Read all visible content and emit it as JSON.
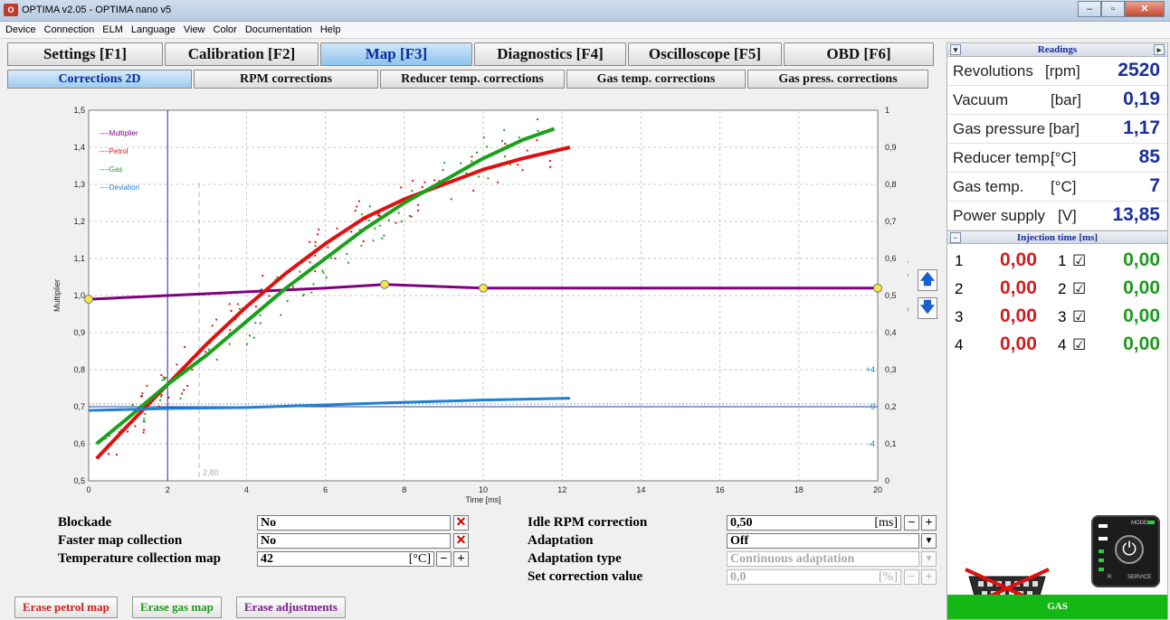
{
  "window": {
    "title": "OPTIMA v2.05  -  OPTIMA nano v5",
    "icon_text": "O"
  },
  "menu": [
    "Device",
    "Connection",
    "ELM",
    "Language",
    "View",
    "Color",
    "Documentation",
    "Help"
  ],
  "main_tabs": [
    {
      "label": "Settings [F1]",
      "active": false
    },
    {
      "label": "Calibration [F2]",
      "active": false
    },
    {
      "label": "Map [F3]",
      "active": true
    },
    {
      "label": "Diagnostics [F4]",
      "active": false
    },
    {
      "label": "Oscilloscope [F5]",
      "active": false
    },
    {
      "label": "OBD [F6]",
      "active": false
    }
  ],
  "sub_tabs": [
    {
      "label": "Corrections 2D",
      "active": true
    },
    {
      "label": "RPM corrections",
      "active": false
    },
    {
      "label": "Reducer temp. corrections",
      "active": false
    },
    {
      "label": "Gas temp. corrections",
      "active": false
    },
    {
      "label": "Gas press. corrections",
      "active": false
    }
  ],
  "chart_data": {
    "type": "line",
    "xlabel": "Time [ms]",
    "ylabel": "Multiplier",
    "ylabel_right": "Pressure [bar]",
    "xlim": [
      0,
      20
    ],
    "ylim": [
      0.5,
      1.5
    ],
    "ylim_right": [
      0,
      1
    ],
    "x_ticks": [
      0,
      2,
      4,
      6,
      8,
      10,
      12,
      14,
      16,
      18,
      20
    ],
    "y_ticks": [
      "0,5",
      "0,6",
      "0,7",
      "0,8",
      "0,9",
      "1,0",
      "1,1",
      "1,2",
      "1,3",
      "1,4",
      "1,5"
    ],
    "y_ticks_right": [
      "0",
      "0,1",
      "0,2",
      "0,3",
      "0,4",
      "0,5",
      "0,6",
      "0,7",
      "0,8",
      "0,9",
      "1"
    ],
    "deviation_labels": [
      "+4",
      "0",
      "-4"
    ],
    "cursor_x": 2,
    "marker_label": "2,80",
    "marker_x": 2.8,
    "legend": [
      "Multiplier",
      "Petrol",
      "Gas",
      "Deviation"
    ],
    "colors": {
      "multiplier": "#800080",
      "petrol": "#e01010",
      "gas": "#1aa01a",
      "deviation": "#1f7fd0"
    },
    "series": [
      {
        "name": "Multiplier",
        "x": [
          0,
          2,
          4,
          6,
          7.5,
          10,
          20
        ],
        "y": [
          0.99,
          1.0,
          1.01,
          1.02,
          1.03,
          1.02,
          1.02
        ]
      },
      {
        "name": "Petrol",
        "x": [
          0.2,
          1,
          2,
          3,
          4,
          5,
          6,
          7,
          8,
          9,
          10,
          11,
          12.2
        ],
        "y": [
          0.56,
          0.65,
          0.76,
          0.87,
          0.97,
          1.06,
          1.14,
          1.21,
          1.26,
          1.3,
          1.34,
          1.37,
          1.4
        ]
      },
      {
        "name": "Gas",
        "x": [
          0.2,
          1,
          2,
          3,
          4,
          5,
          6,
          7,
          8,
          9,
          10,
          11,
          11.8
        ],
        "y": [
          0.6,
          0.67,
          0.76,
          0.84,
          0.93,
          1.02,
          1.1,
          1.18,
          1.25,
          1.31,
          1.37,
          1.42,
          1.45
        ]
      },
      {
        "name": "Deviation",
        "x": [
          0,
          2,
          4,
          6,
          8,
          10,
          12.2
        ],
        "y": [
          0.69,
          0.695,
          0.698,
          0.705,
          0.712,
          0.718,
          0.723
        ]
      }
    ],
    "control_points": [
      [
        0,
        0.99
      ],
      [
        7.5,
        1.03
      ],
      [
        10,
        1.02
      ],
      [
        20,
        1.02
      ]
    ]
  },
  "form": {
    "blockade_label": "Blockade",
    "blockade_value": "No",
    "faster_label": "Faster map collection",
    "faster_value": "No",
    "temp_label": "Temperature collection map",
    "temp_value": "42",
    "temp_unit": "[°C]",
    "idle_label": "Idle RPM correction",
    "idle_value": "0,50",
    "idle_unit": "[ms]",
    "adapt_label": "Adaptation",
    "adapt_value": "Off",
    "adapt_type_label": "Adaptation type",
    "adapt_type_value": "Continuous adaptation",
    "setcorr_label": "Set correction value",
    "setcorr_value": "0,0",
    "setcorr_unit": "[%]"
  },
  "erase": {
    "petrol": "Erase petrol map",
    "gas": "Erase gas map",
    "adjust": "Erase adjustments"
  },
  "readings": {
    "title": "Readings",
    "rows": [
      {
        "label": "Revolutions",
        "unit": "[rpm]",
        "value": "2520"
      },
      {
        "label": "Vacuum",
        "unit": "[bar]",
        "value": "0,19"
      },
      {
        "label": "Gas pressure",
        "unit": "[bar]",
        "value": "1,17"
      },
      {
        "label": "Reducer temp.",
        "unit": "[°C]",
        "value": "85"
      },
      {
        "label": "Gas temp.",
        "unit": "[°C]",
        "value": "7"
      },
      {
        "label": "Power supply",
        "unit": "[V]",
        "value": "13,85"
      }
    ]
  },
  "injection": {
    "title": "Injection time [ms]",
    "rows": [
      {
        "n": "1",
        "petrol": "0,00",
        "gn": "1",
        "gas": "0,00"
      },
      {
        "n": "2",
        "petrol": "0,00",
        "gn": "2",
        "gas": "0,00"
      },
      {
        "n": "3",
        "petrol": "0,00",
        "gn": "3",
        "gas": "0,00"
      },
      {
        "n": "4",
        "petrol": "0,00",
        "gn": "4",
        "gas": "0,00"
      }
    ]
  },
  "switch": {
    "mode_label": "MODE",
    "service_label": "SERVICE",
    "r_label": "R"
  },
  "status": "GAS"
}
